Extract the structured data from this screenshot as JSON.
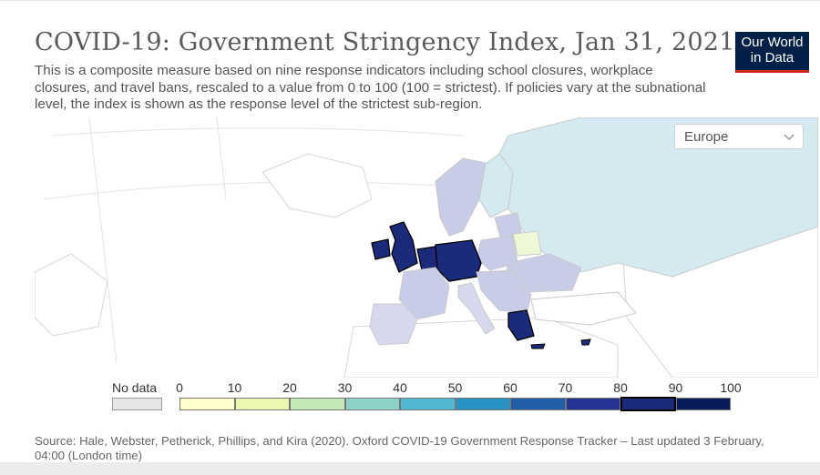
{
  "header": {
    "title": "COVID-19: Government Stringency Index, Jan 31, 2021",
    "subtitle": "This is a composite measure based on nine response indicators including school closures, workplace closures, and travel bans, rescaled to a value from 0 to 100 (100 = strictest). If policies vary at the subnational level, the index is shown as the response level of the strictest sub-region."
  },
  "logo": {
    "line1": "Our World",
    "line2": "in Data",
    "bg": "#002147",
    "accent": "#ce261e"
  },
  "region_select": {
    "value": "Europe",
    "icon": "chevron-down-icon"
  },
  "legend": {
    "nodata_label": "No data",
    "ticks": [
      "0",
      "10",
      "20",
      "30",
      "40",
      "50",
      "60",
      "70",
      "80",
      "90",
      "100"
    ],
    "colors": [
      "#ffffcc",
      "#ebf7b1",
      "#c5e8b7",
      "#8ed1c6",
      "#50b8d0",
      "#2793c3",
      "#225ea8",
      "#253494",
      "#1b2a7a",
      "#081d58"
    ],
    "active_bin": 8
  },
  "map": {
    "colors": {
      "very_high": "#1b2a7a",
      "high": "#2b3a8f",
      "mid_high": "#3f4fa0",
      "lavender": "#c9cce6",
      "light_lavender": "#d6d9ee",
      "light_blue": "#d4e9f0",
      "pale_yellow": "#eef7d6",
      "land": "#ffffff",
      "border": "#d6d6d6"
    }
  },
  "source": "Source: Hale, Webster, Petherick, Phillips, and Kira (2020). Oxford COVID-19 Government Response Tracker – Last updated 3 February, 04:00 (London time)"
}
